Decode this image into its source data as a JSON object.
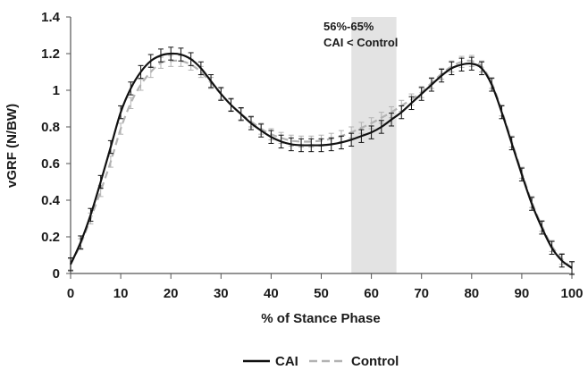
{
  "chart_data": {
    "type": "line",
    "xlabel": "% of Stance Phase",
    "ylabel": "vGRF (N/BW)",
    "xlim": [
      0,
      100
    ],
    "ylim": [
      0,
      1.4
    ],
    "x_ticks": [
      0,
      10,
      20,
      30,
      40,
      50,
      60,
      70,
      80,
      90,
      100
    ],
    "y_ticks": [
      0,
      0.2,
      0.4,
      0.6,
      0.8,
      1,
      1.2,
      1.4
    ],
    "grid": false,
    "legend_position": "bottom",
    "shaded_region": {
      "x_range": [
        56,
        65
      ],
      "color": "#e3e3e3"
    },
    "annotation": {
      "line1": "56%-65%",
      "line2": "CAI < Control"
    },
    "x": [
      0,
      2,
      4,
      6,
      8,
      10,
      12,
      14,
      16,
      18,
      20,
      22,
      24,
      26,
      28,
      30,
      32,
      34,
      36,
      38,
      40,
      42,
      44,
      46,
      48,
      50,
      52,
      54,
      56,
      58,
      60,
      62,
      64,
      66,
      68,
      70,
      72,
      74,
      76,
      78,
      80,
      82,
      84,
      86,
      88,
      90,
      92,
      94,
      96,
      98,
      100
    ],
    "series": [
      {
        "name": "CAI",
        "color": "#111111",
        "dashed": false,
        "error_bar": 0.035,
        "values": [
          0.05,
          0.17,
          0.32,
          0.5,
          0.69,
          0.88,
          1.01,
          1.1,
          1.16,
          1.19,
          1.2,
          1.195,
          1.17,
          1.12,
          1.05,
          0.98,
          0.92,
          0.87,
          0.82,
          0.78,
          0.745,
          0.72,
          0.705,
          0.7,
          0.7,
          0.7,
          0.705,
          0.715,
          0.73,
          0.75,
          0.77,
          0.8,
          0.84,
          0.88,
          0.93,
          0.98,
          1.03,
          1.08,
          1.12,
          1.14,
          1.145,
          1.12,
          1.03,
          0.88,
          0.71,
          0.54,
          0.38,
          0.25,
          0.14,
          0.07,
          0.03
        ]
      },
      {
        "name": "Control",
        "color": "#b3b3b3",
        "dashed": true,
        "error_bar": 0.03,
        "values": [
          0.05,
          0.16,
          0.3,
          0.45,
          0.61,
          0.79,
          0.93,
          1.03,
          1.1,
          1.15,
          1.16,
          1.16,
          1.14,
          1.1,
          1.04,
          0.98,
          0.92,
          0.87,
          0.83,
          0.79,
          0.76,
          0.74,
          0.725,
          0.72,
          0.72,
          0.725,
          0.735,
          0.75,
          0.77,
          0.795,
          0.82,
          0.85,
          0.88,
          0.915,
          0.95,
          0.99,
          1.04,
          1.09,
          1.13,
          1.155,
          1.16,
          1.13,
          1.04,
          0.89,
          0.72,
          0.55,
          0.39,
          0.26,
          0.15,
          0.08,
          0.03
        ]
      }
    ]
  }
}
